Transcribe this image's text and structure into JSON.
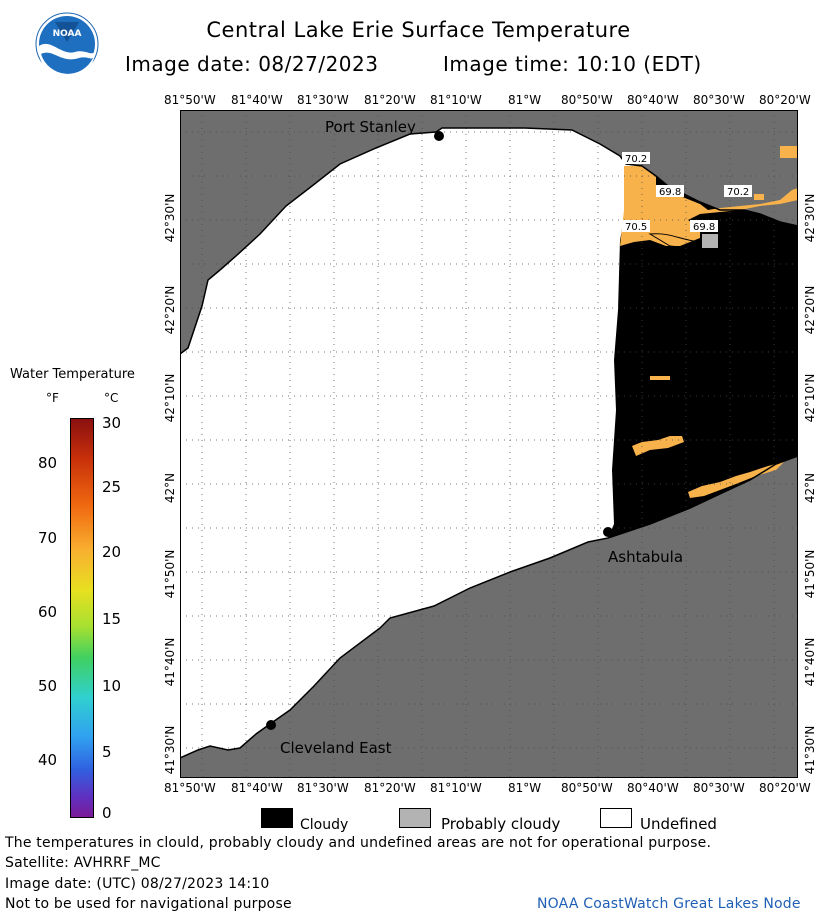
{
  "header": {
    "title": "Central Lake Erie Surface Temperature",
    "image_date": "Image date: 08/27/2023",
    "image_time": "Image time: 10:10 (EDT)"
  },
  "logo": {
    "text": "NOAA",
    "icon": "noaa-logo-icon"
  },
  "axes": {
    "lon_labels": [
      "81°50'W",
      "81°40'W",
      "81°30'W",
      "81°20'W",
      "81°10'W",
      "81°W",
      "80°50'W",
      "80°40'W",
      "80°30'W",
      "80°20'W"
    ],
    "lat_labels": [
      "42°30'N",
      "42°20'N",
      "42°10'N",
      "42°N",
      "41°50'N",
      "41°40'N",
      "41°30'N"
    ]
  },
  "places": {
    "port_stanley": "Port Stanley",
    "ashtabula": "Ashtabula",
    "cleveland_east": "Cleveland East"
  },
  "temp_labels": [
    "70.2",
    "69.8",
    "70.2",
    "70.5",
    "69.8"
  ],
  "colorbar": {
    "title": "Water Temperature",
    "f_unit": "°F",
    "c_unit": "°C",
    "f_ticks": [
      "80",
      "70",
      "60",
      "50",
      "40"
    ],
    "c_ticks": [
      "30",
      "25",
      "20",
      "15",
      "10",
      "5",
      "0"
    ]
  },
  "legend": {
    "cloudy": "Cloudy",
    "probably_cloudy": "Probably cloudy",
    "undefined": "Undefined"
  },
  "colors": {
    "land": "#6e6e6e",
    "cloud": "#000000",
    "probably_cloud": "#b3b3b3",
    "undefined": "#ffffff",
    "warm_water": "#f8b24c"
  },
  "footer": {
    "disclaimer": "The temperatures in clould, probably cloudy and undefined areas are not for operational purpose.",
    "satellite": "Satellite: AVHRRF_MC",
    "utc_date": "Image date: (UTC) 08/27/2023  14:10",
    "nav_warning": "Not to be used for navigational purpose",
    "credit": "NOAA CoastWatch Great Lakes Node"
  }
}
